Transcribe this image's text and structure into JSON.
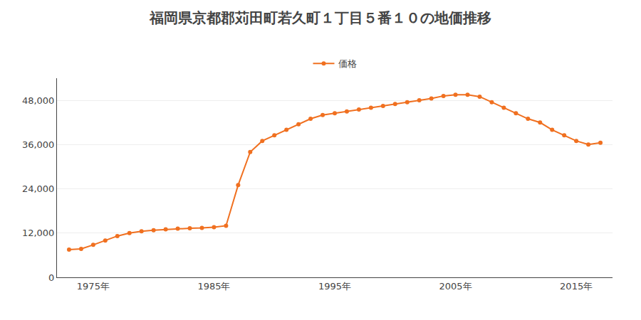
{
  "chart_data": {
    "type": "line",
    "title": "福岡県京都郡苅田町若久町１丁目５番１０の地価推移",
    "x": [
      1973,
      1974,
      1975,
      1976,
      1977,
      1978,
      1979,
      1980,
      1981,
      1982,
      1983,
      1984,
      1985,
      1986,
      1987,
      1988,
      1989,
      1990,
      1991,
      1992,
      1993,
      1994,
      1995,
      1996,
      1997,
      1998,
      1999,
      2000,
      2001,
      2002,
      2003,
      2004,
      2005,
      2006,
      2007,
      2008,
      2009,
      2010,
      2011,
      2012,
      2013,
      2014,
      2015,
      2016,
      2017
    ],
    "series": [
      {
        "name": "価格",
        "color": "#f07020",
        "marker": "circle",
        "line_style": "solid",
        "values": [
          7500,
          7700,
          8800,
          10000,
          11200,
          12000,
          12500,
          12800,
          13000,
          13200,
          13300,
          13400,
          13600,
          14000,
          25000,
          34000,
          37000,
          38500,
          40000,
          41500,
          43000,
          44000,
          44500,
          45000,
          45500,
          46000,
          46500,
          47000,
          47500,
          48000,
          48500,
          49200,
          49500,
          49500,
          49000,
          47500,
          46000,
          44500,
          43000,
          42000,
          40000,
          38500,
          37000,
          36000,
          36500
        ]
      }
    ],
    "xlim": [
      1972,
      2018
    ],
    "xticks": [
      {
        "value": 1975,
        "label": "1975年"
      },
      {
        "value": 1985,
        "label": "1985年"
      },
      {
        "value": 1995,
        "label": "1995年"
      },
      {
        "value": 2005,
        "label": "2005年"
      },
      {
        "value": 2015,
        "label": "2015年"
      }
    ],
    "ylim": [
      0,
      54000
    ],
    "yticks": [
      0,
      {
        "value": 12000,
        "label": "12,000"
      },
      {
        "value": 24000,
        "label": "24,000"
      },
      {
        "value": 36000,
        "label": "36,000"
      },
      {
        "value": 48000,
        "label": "48,000"
      }
    ],
    "grid": "y",
    "legend": "top"
  }
}
